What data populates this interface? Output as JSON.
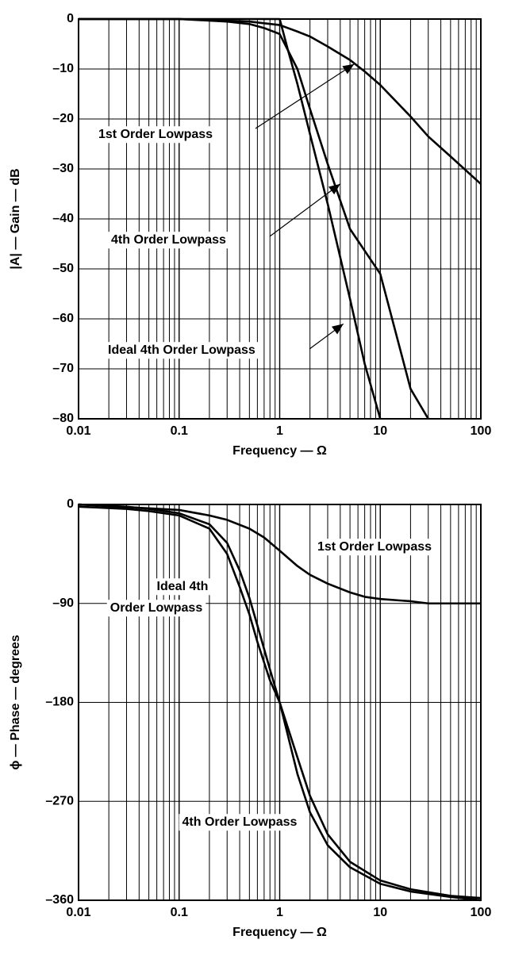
{
  "chart_data": [
    {
      "type": "line",
      "xscale": "log",
      "xlim": [
        0.01,
        100
      ],
      "ylim": [
        -80,
        0
      ],
      "xlabel": "Frequency — Ω",
      "ylabel": "|A| — Gain — dB",
      "xticks": [
        {
          "value": 0.01,
          "label": "0.01"
        },
        {
          "value": 0.1,
          "label": "0.1"
        },
        {
          "value": 1,
          "label": "1"
        },
        {
          "value": 10,
          "label": "10"
        },
        {
          "value": 100,
          "label": "100"
        }
      ],
      "yticks": [
        {
          "value": 0,
          "label": "0"
        },
        {
          "value": -10,
          "label": "–10"
        },
        {
          "value": -20,
          "label": "–20"
        },
        {
          "value": -30,
          "label": "–30"
        },
        {
          "value": -40,
          "label": "–40"
        },
        {
          "value": -50,
          "label": "–50"
        },
        {
          "value": -60,
          "label": "–60"
        },
        {
          "value": -70,
          "label": "–70"
        },
        {
          "value": -80,
          "label": "–80"
        }
      ],
      "grid": true,
      "series": [
        {
          "name": "1st Order Lowpass",
          "points": [
            [
              0.01,
              0
            ],
            [
              0.1,
              0
            ],
            [
              0.5,
              -0.5
            ],
            [
              1,
              -1.2
            ],
            [
              1.5,
              -2.5
            ],
            [
              2,
              -3.5
            ],
            [
              3,
              -5.5
            ],
            [
              5,
              -8.2
            ],
            [
              7,
              -10.5
            ],
            [
              10,
              -13.2
            ],
            [
              20,
              -19.5
            ],
            [
              30,
              -23.5
            ],
            [
              50,
              -27.5
            ],
            [
              100,
              -33
            ]
          ]
        },
        {
          "name": "4th Order Lowpass",
          "points": [
            [
              0.01,
              0
            ],
            [
              0.1,
              0
            ],
            [
              0.3,
              -0.5
            ],
            [
              0.5,
              -1
            ],
            [
              0.7,
              -1.8
            ],
            [
              1,
              -3
            ],
            [
              1.5,
              -10
            ],
            [
              2,
              -18
            ],
            [
              3,
              -29
            ],
            [
              5,
              -42
            ],
            [
              10,
              -51
            ],
            [
              20,
              -74
            ],
            [
              30,
              -80
            ]
          ]
        },
        {
          "name": "Ideal 4th Order Lowpass",
          "points": [
            [
              0.01,
              0
            ],
            [
              0.1,
              0
            ],
            [
              0.5,
              0
            ],
            [
              1,
              0
            ],
            [
              1.2,
              -6
            ],
            [
              1.5,
              -13
            ],
            [
              2,
              -23
            ],
            [
              3,
              -37
            ],
            [
              5,
              -56
            ],
            [
              7,
              -69
            ],
            [
              10,
              -80
            ]
          ]
        }
      ],
      "annotations": [
        {
          "text": "1st Order Lowpass",
          "series": "1st Order Lowpass",
          "target": [
            5.5,
            -9
          ]
        },
        {
          "text": "4th Order Lowpass",
          "series": "4th Order Lowpass",
          "target": [
            4,
            -33
          ]
        },
        {
          "text": "Ideal 4th Order Lowpass",
          "series": "Ideal 4th Order Lowpass",
          "target": [
            4.3,
            -61
          ]
        }
      ]
    },
    {
      "type": "line",
      "xscale": "log",
      "xlim": [
        0.01,
        100
      ],
      "ylim": [
        -360,
        0
      ],
      "xlabel": "Frequency — Ω",
      "ylabel": "ϕ — Phase — degrees",
      "xticks": [
        {
          "value": 0.01,
          "label": "0.01"
        },
        {
          "value": 0.1,
          "label": "0.1"
        },
        {
          "value": 1,
          "label": "1"
        },
        {
          "value": 10,
          "label": "10"
        },
        {
          "value": 100,
          "label": "100"
        }
      ],
      "yticks": [
        {
          "value": 0,
          "label": "0"
        },
        {
          "value": -90,
          "label": "–90"
        },
        {
          "value": -180,
          "label": "–180"
        },
        {
          "value": -270,
          "label": "–270"
        },
        {
          "value": -360,
          "label": "–360"
        }
      ],
      "grid": true,
      "series": [
        {
          "name": "1st Order Lowpass",
          "points": [
            [
              0.01,
              0
            ],
            [
              0.1,
              -5
            ],
            [
              0.2,
              -10
            ],
            [
              0.3,
              -14
            ],
            [
              0.5,
              -22
            ],
            [
              0.7,
              -30
            ],
            [
              1,
              -42
            ],
            [
              1.5,
              -56
            ],
            [
              2,
              -64
            ],
            [
              3,
              -72
            ],
            [
              5,
              -80
            ],
            [
              7,
              -84
            ],
            [
              10,
              -86
            ],
            [
              20,
              -88
            ],
            [
              30,
              -90
            ],
            [
              100,
              -90
            ]
          ]
        },
        {
          "name": "4th Order Lowpass",
          "points": [
            [
              0.01,
              -2
            ],
            [
              0.03,
              -4
            ],
            [
              0.05,
              -6
            ],
            [
              0.1,
              -10
            ],
            [
              0.2,
              -22
            ],
            [
              0.3,
              -45
            ],
            [
              0.4,
              -75
            ],
            [
              0.5,
              -100
            ],
            [
              0.6,
              -125
            ],
            [
              0.8,
              -160
            ],
            [
              1,
              -180
            ],
            [
              1.5,
              -245
            ],
            [
              2,
              -280
            ],
            [
              3,
              -310
            ],
            [
              5,
              -330
            ],
            [
              10,
              -345
            ],
            [
              20,
              -352
            ],
            [
              50,
              -357
            ],
            [
              100,
              -360
            ]
          ]
        },
        {
          "name": "Ideal 4th Order Lowpass",
          "points": [
            [
              0.01,
              0
            ],
            [
              0.03,
              -2
            ],
            [
              0.05,
              -4
            ],
            [
              0.1,
              -8
            ],
            [
              0.2,
              -18
            ],
            [
              0.3,
              -35
            ],
            [
              0.4,
              -60
            ],
            [
              0.5,
              -85
            ],
            [
              0.6,
              -110
            ],
            [
              0.8,
              -150
            ],
            [
              1,
              -180
            ],
            [
              1.5,
              -230
            ],
            [
              2,
              -265
            ],
            [
              3,
              -300
            ],
            [
              5,
              -325
            ],
            [
              10,
              -342
            ],
            [
              20,
              -350
            ],
            [
              50,
              -356
            ],
            [
              100,
              -358
            ]
          ]
        }
      ],
      "annotations": [
        {
          "text": "1st Order Lowpass",
          "target": [
            10,
            -45
          ]
        },
        {
          "text": "Ideal 4th",
          "target": [
            0.15,
            -60
          ]
        },
        {
          "text": "Order Lowpass",
          "target": [
            0.15,
            -82
          ]
        },
        {
          "text": "4th Order Lowpass",
          "target": [
            1.2,
            -300
          ]
        }
      ]
    }
  ]
}
